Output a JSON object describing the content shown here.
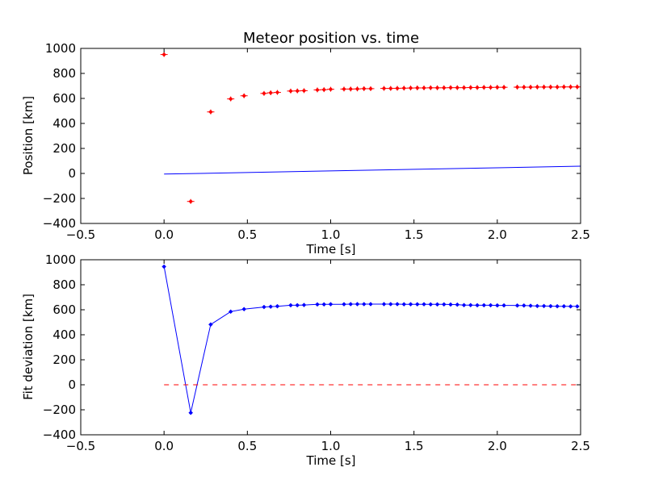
{
  "chart_data": [
    {
      "type": "scatter",
      "title": "Meteor position vs. time",
      "xlabel": "Time [s]",
      "ylabel": "Position [km]",
      "xlim": [
        -0.5,
        2.5
      ],
      "ylim": [
        -400,
        1000
      ],
      "xticks": [
        "−0.5",
        "0.0",
        "0.5",
        "1.0",
        "1.5",
        "2.0",
        "2.5"
      ],
      "yticks": [
        "−400",
        "−200",
        "0",
        "200",
        "400",
        "600",
        "800",
        "1000"
      ],
      "grid": false,
      "series": [
        {
          "color": "#ff0000",
          "marker": "diamond-errorbar",
          "x": [
            0.0,
            0.16,
            0.28,
            0.4,
            0.48,
            0.6,
            0.64,
            0.68,
            0.76,
            0.8,
            0.84,
            0.92,
            0.96,
            1.0,
            1.08,
            1.12,
            1.16,
            1.2,
            1.24,
            1.32,
            1.36,
            1.4,
            1.44,
            1.48,
            1.52,
            1.56,
            1.6,
            1.64,
            1.68,
            1.72,
            1.76,
            1.8,
            1.84,
            1.88,
            1.92,
            1.96,
            2.0,
            2.04,
            2.12,
            2.16,
            2.2,
            2.24,
            2.28,
            2.32,
            2.36,
            2.4,
            2.44,
            2.48
          ],
          "y": [
            951,
            -224,
            492,
            596,
            621,
            640,
            645,
            648,
            659,
            660,
            662,
            668,
            670,
            673,
            675,
            675,
            676,
            678,
            678,
            680,
            680,
            681,
            682,
            683,
            684,
            684,
            685,
            685,
            685,
            686,
            686,
            686,
            687,
            687,
            688,
            688,
            689,
            689,
            690,
            690,
            690,
            691,
            691,
            691,
            691,
            692,
            692,
            692
          ]
        },
        {
          "color": "#0000ff",
          "marker": "none",
          "x": [
            0.0,
            2.5
          ],
          "y": [
            -5,
            58
          ]
        }
      ]
    },
    {
      "type": "line",
      "title": "",
      "xlabel": "Time [s]",
      "ylabel": "Fit deviation [km]",
      "xlim": [
        -0.5,
        2.5
      ],
      "ylim": [
        -400,
        1000
      ],
      "xticks": [
        "−0.5",
        "0.0",
        "0.5",
        "1.0",
        "1.5",
        "2.0",
        "2.5"
      ],
      "yticks": [
        "−400",
        "−200",
        "0",
        "200",
        "400",
        "600",
        "800",
        "1000"
      ],
      "grid": false,
      "series": [
        {
          "color": "#0000ff",
          "marker": "diamond",
          "x": [
            0.0,
            0.16,
            0.28,
            0.4,
            0.48,
            0.6,
            0.64,
            0.68,
            0.76,
            0.8,
            0.84,
            0.92,
            0.96,
            1.0,
            1.08,
            1.12,
            1.16,
            1.2,
            1.24,
            1.32,
            1.36,
            1.4,
            1.44,
            1.48,
            1.52,
            1.56,
            1.6,
            1.64,
            1.68,
            1.72,
            1.76,
            1.8,
            1.84,
            1.88,
            1.92,
            1.96,
            2.0,
            2.04,
            2.12,
            2.16,
            2.2,
            2.24,
            2.28,
            2.32,
            2.36,
            2.4,
            2.44,
            2.48
          ],
          "y": [
            945,
            -224,
            482,
            585,
            605,
            622,
            625,
            628,
            636,
            636,
            638,
            643,
            643,
            644,
            644,
            645,
            645,
            645,
            645,
            645,
            645,
            645,
            644,
            644,
            644,
            644,
            643,
            643,
            643,
            642,
            641,
            637,
            637,
            636,
            636,
            636,
            635,
            635,
            634,
            634,
            632,
            630,
            630,
            629,
            628,
            628,
            627,
            627
          ]
        },
        {
          "color": "#ff0000",
          "marker": "none",
          "dash": "dashed",
          "x": [
            0.0,
            2.5
          ],
          "y": [
            0,
            0
          ]
        }
      ]
    }
  ]
}
